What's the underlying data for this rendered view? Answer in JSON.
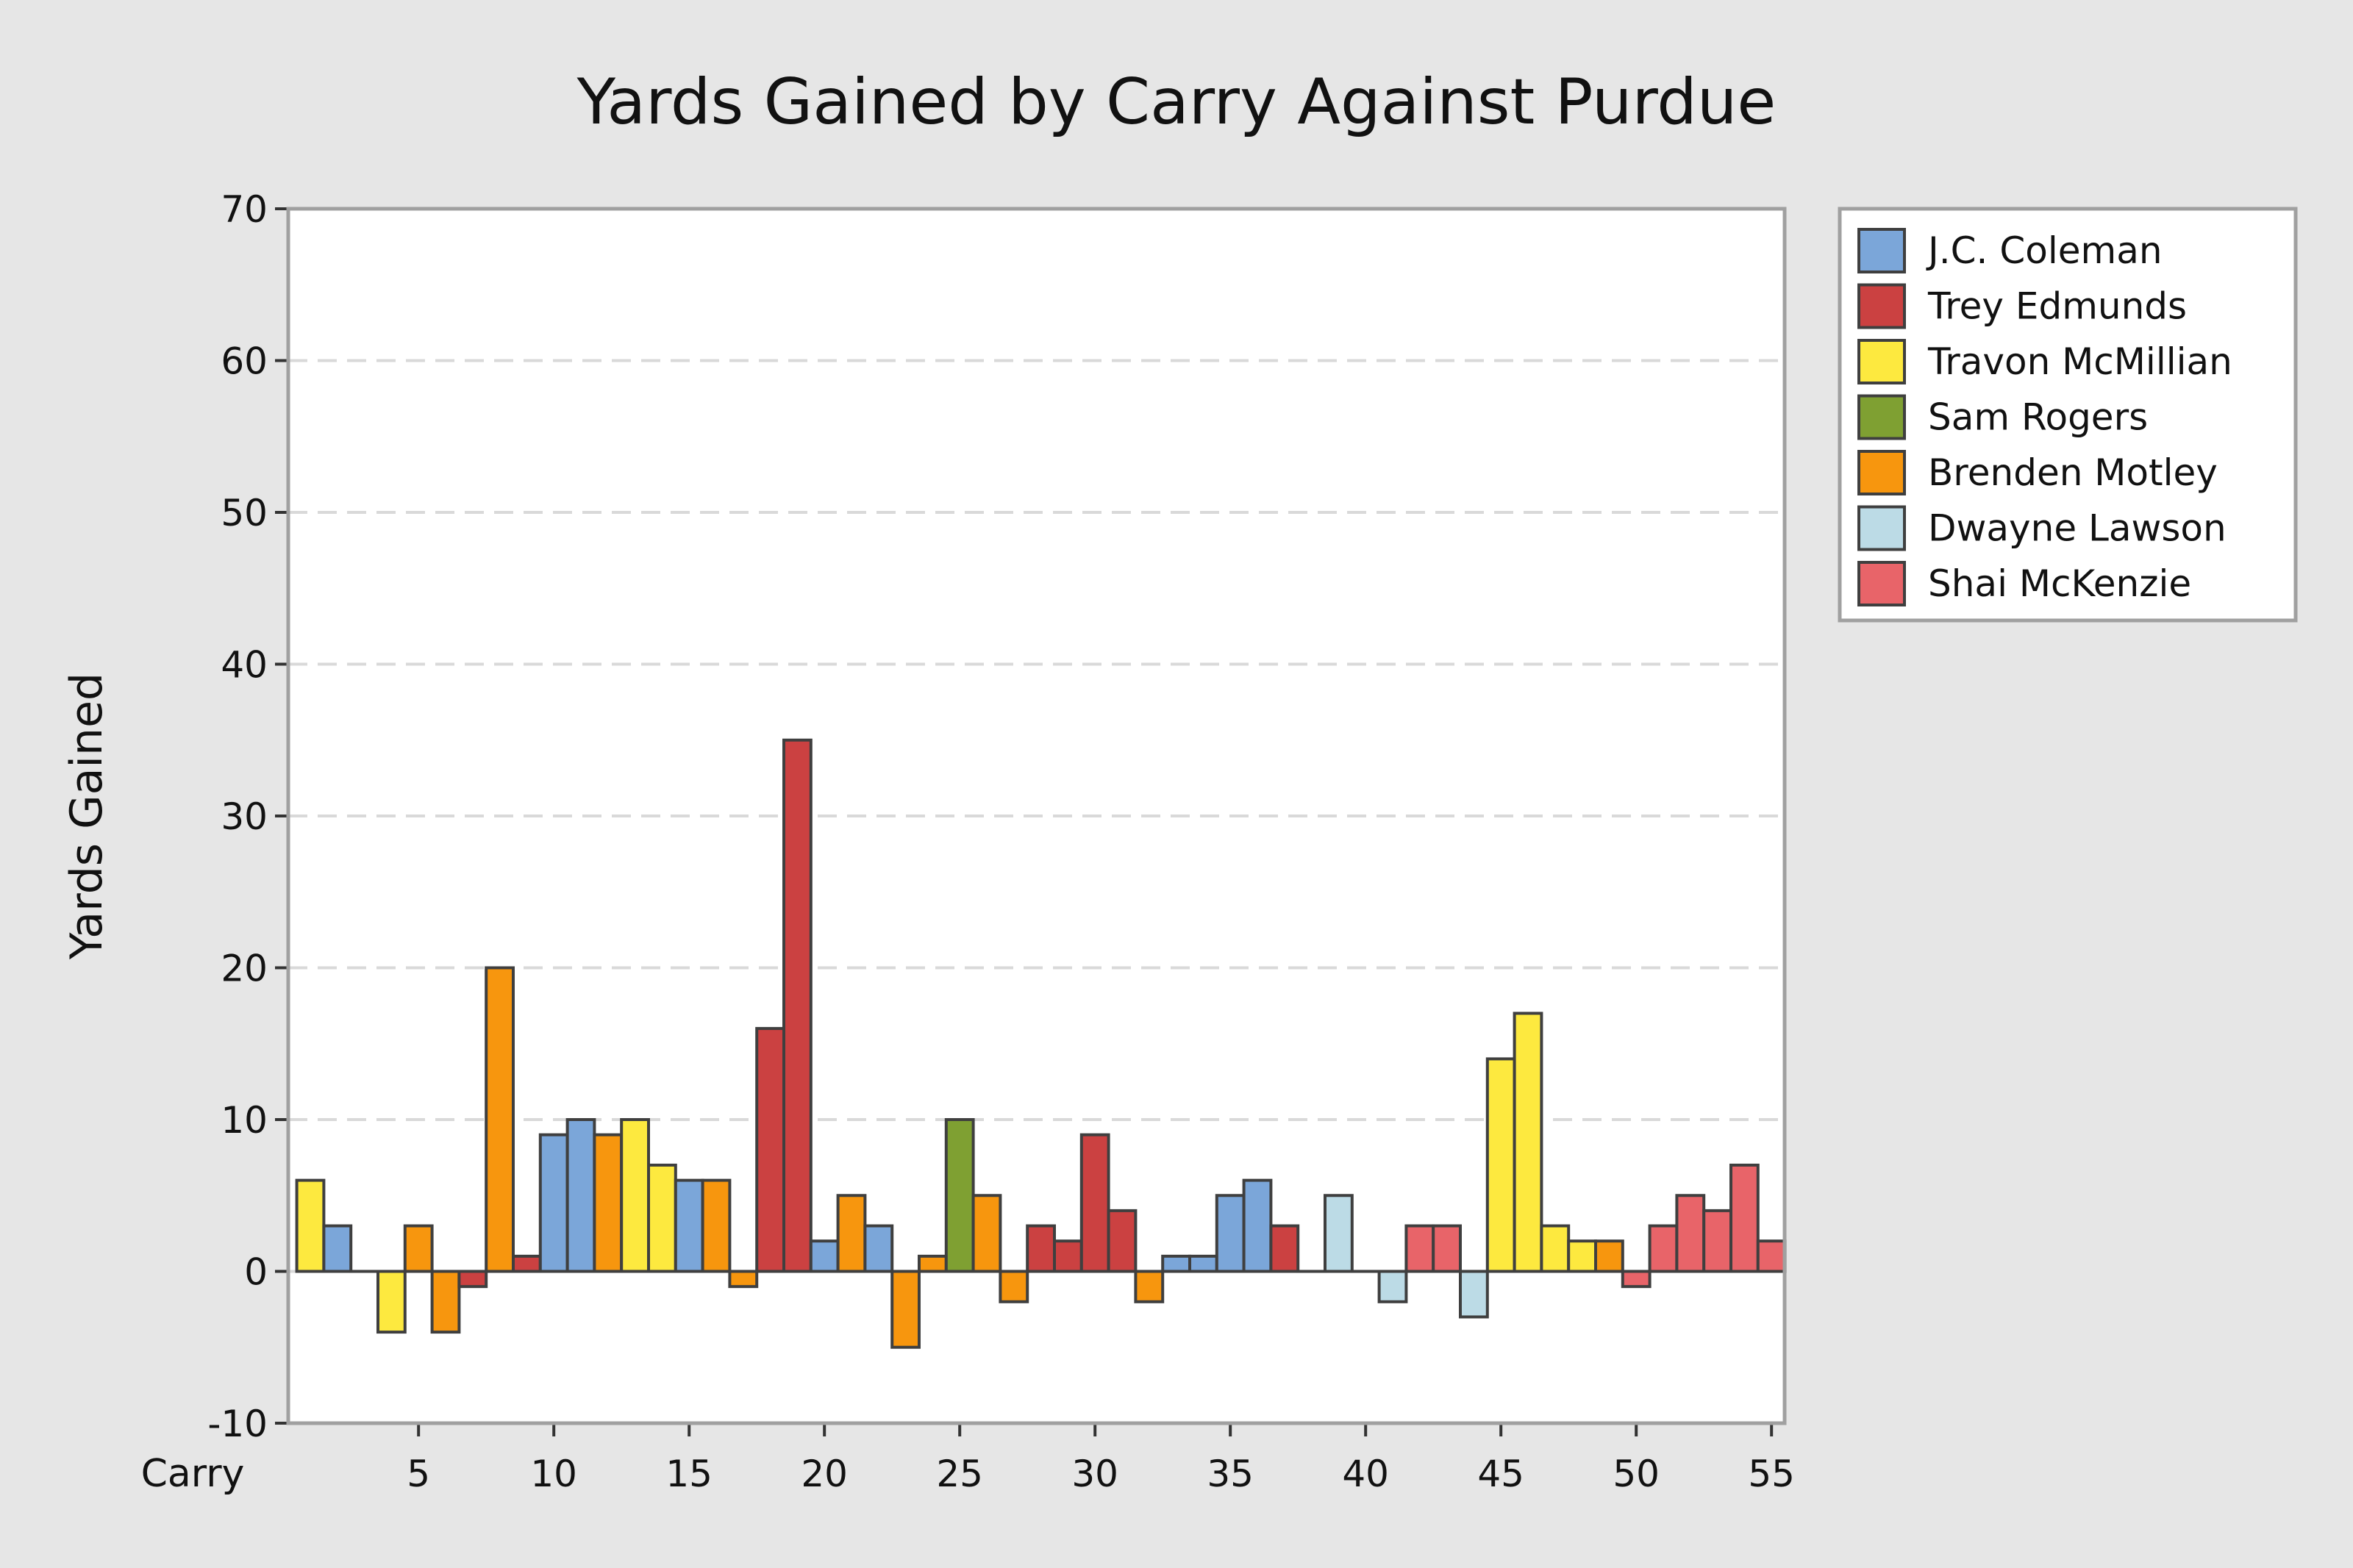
{
  "chart_data": {
    "type": "bar",
    "title": "Yards Gained by Carry Against Purdue",
    "ylabel": "Yards Gained",
    "xlabel": "Carry",
    "ylim": [
      -10,
      70
    ],
    "yticks": [
      -10,
      0,
      10,
      20,
      30,
      40,
      50,
      60,
      70
    ],
    "xticks": [
      5,
      10,
      15,
      20,
      25,
      30,
      35,
      40,
      45,
      50,
      55
    ],
    "xlim": [
      1,
      55
    ],
    "grid": "horizontal dashed",
    "legend_position": "right",
    "players": [
      {
        "name": "J.C. Coleman",
        "color": "#7ba6d9"
      },
      {
        "name": "Trey Edmunds",
        "color": "#cb4141"
      },
      {
        "name": "Travon McMillian",
        "color": "#fde93f"
      },
      {
        "name": "Sam Rogers",
        "color": "#7fa032"
      },
      {
        "name": "Brenden Motley",
        "color": "#f7960e"
      },
      {
        "name": "Dwayne Lawson",
        "color": "#bcdbe6"
      },
      {
        "name": "Shai McKenzie",
        "color": "#e86469"
      }
    ],
    "carries": [
      {
        "carry": 1,
        "player": 2,
        "yards": 6
      },
      {
        "carry": 2,
        "player": 0,
        "yards": 3
      },
      {
        "carry": 3,
        "player": 1,
        "yards": 0
      },
      {
        "carry": 4,
        "player": 2,
        "yards": -4
      },
      {
        "carry": 5,
        "player": 4,
        "yards": 3
      },
      {
        "carry": 6,
        "player": 4,
        "yards": -4
      },
      {
        "carry": 7,
        "player": 1,
        "yards": -1
      },
      {
        "carry": 8,
        "player": 4,
        "yards": 20
      },
      {
        "carry": 9,
        "player": 1,
        "yards": 1
      },
      {
        "carry": 10,
        "player": 0,
        "yards": 9
      },
      {
        "carry": 11,
        "player": 0,
        "yards": 10
      },
      {
        "carry": 12,
        "player": 4,
        "yards": 9
      },
      {
        "carry": 13,
        "player": 2,
        "yards": 10
      },
      {
        "carry": 14,
        "player": 2,
        "yards": 7
      },
      {
        "carry": 15,
        "player": 0,
        "yards": 6
      },
      {
        "carry": 16,
        "player": 4,
        "yards": 6
      },
      {
        "carry": 17,
        "player": 4,
        "yards": -1
      },
      {
        "carry": 18,
        "player": 1,
        "yards": 16
      },
      {
        "carry": 19,
        "player": 1,
        "yards": 35
      },
      {
        "carry": 20,
        "player": 0,
        "yards": 2
      },
      {
        "carry": 21,
        "player": 4,
        "yards": 5
      },
      {
        "carry": 22,
        "player": 0,
        "yards": 3
      },
      {
        "carry": 23,
        "player": 4,
        "yards": -5
      },
      {
        "carry": 24,
        "player": 4,
        "yards": 1
      },
      {
        "carry": 25,
        "player": 3,
        "yards": 10
      },
      {
        "carry": 26,
        "player": 4,
        "yards": 5
      },
      {
        "carry": 27,
        "player": 4,
        "yards": -2
      },
      {
        "carry": 28,
        "player": 1,
        "yards": 3
      },
      {
        "carry": 29,
        "player": 1,
        "yards": 2
      },
      {
        "carry": 30,
        "player": 1,
        "yards": 9
      },
      {
        "carry": 31,
        "player": 1,
        "yards": 4
      },
      {
        "carry": 32,
        "player": 4,
        "yards": -2
      },
      {
        "carry": 33,
        "player": 0,
        "yards": 1
      },
      {
        "carry": 34,
        "player": 0,
        "yards": 1
      },
      {
        "carry": 35,
        "player": 0,
        "yards": 5
      },
      {
        "carry": 36,
        "player": 0,
        "yards": 6
      },
      {
        "carry": 37,
        "player": 1,
        "yards": 3
      },
      {
        "carry": 38,
        "player": 5,
        "yards": 0
      },
      {
        "carry": 39,
        "player": 5,
        "yards": 5
      },
      {
        "carry": 40,
        "player": 5,
        "yards": 0
      },
      {
        "carry": 41,
        "player": 5,
        "yards": -2
      },
      {
        "carry": 42,
        "player": 6,
        "yards": 3
      },
      {
        "carry": 43,
        "player": 6,
        "yards": 3
      },
      {
        "carry": 44,
        "player": 5,
        "yards": -3
      },
      {
        "carry": 45,
        "player": 2,
        "yards": 14
      },
      {
        "carry": 46,
        "player": 2,
        "yards": 17
      },
      {
        "carry": 47,
        "player": 2,
        "yards": 3
      },
      {
        "carry": 48,
        "player": 2,
        "yards": 2
      },
      {
        "carry": 49,
        "player": 4,
        "yards": 2
      },
      {
        "carry": 50,
        "player": 6,
        "yards": -1
      },
      {
        "carry": 51,
        "player": 6,
        "yards": 3
      },
      {
        "carry": 52,
        "player": 6,
        "yards": 5
      },
      {
        "carry": 53,
        "player": 6,
        "yards": 4
      },
      {
        "carry": 54,
        "player": 6,
        "yards": 7
      },
      {
        "carry": 55,
        "player": 6,
        "yards": 2
      }
    ]
  }
}
